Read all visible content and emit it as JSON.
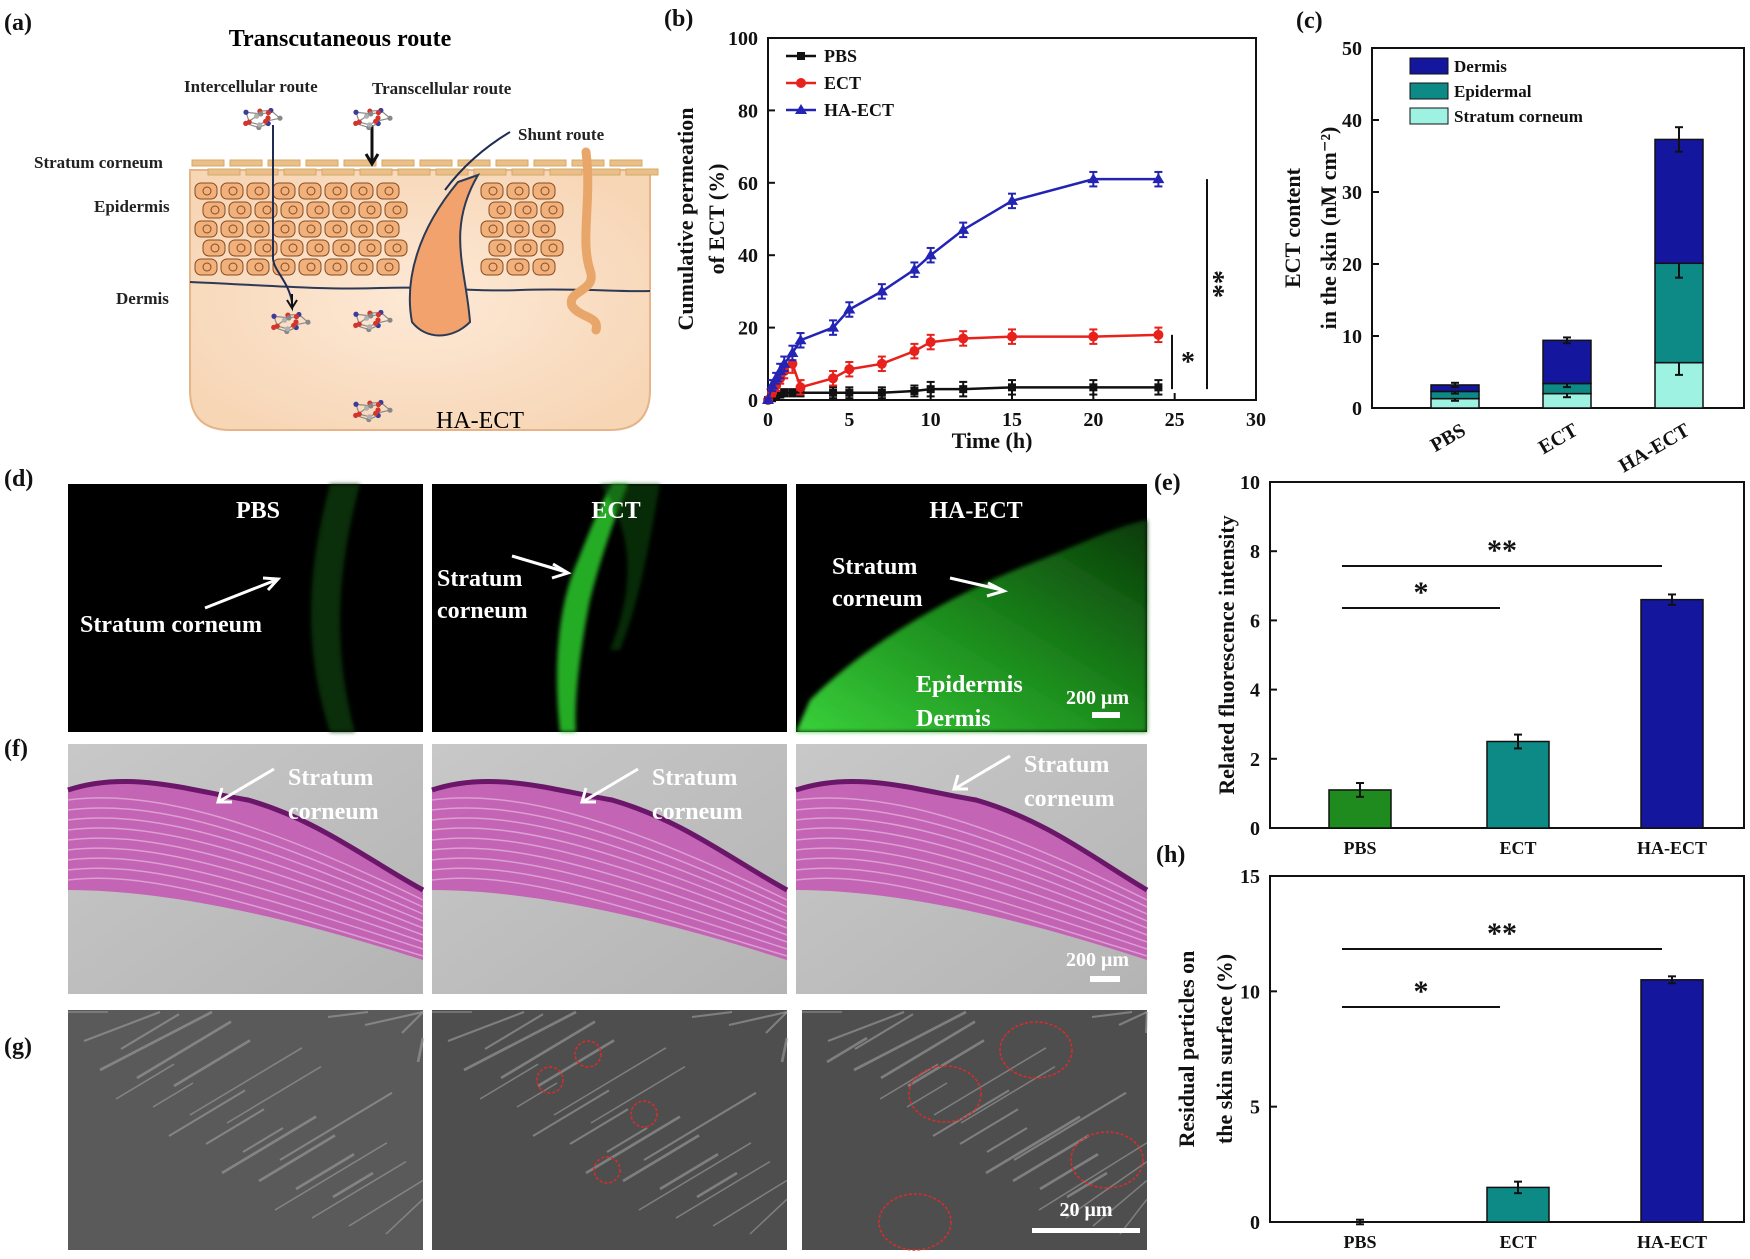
{
  "panel_labels": {
    "a": "(a)",
    "b": "(b)",
    "c": "(c)",
    "d": "(d)",
    "e": "(e)",
    "f": "(f)",
    "g": "(g)",
    "h": "(h)"
  },
  "diagram": {
    "title": "Transcutaneous route",
    "intercellular": "Intercellular route",
    "transcellular": "Transcellular route",
    "shunt": "Shunt route",
    "stratum_corneum": "Stratum  corneum",
    "epidermis": "Epidermis",
    "dermis": "Dermis",
    "ha_ect": "HA-ECT"
  },
  "fluor": {
    "titles": [
      "PBS",
      "ECT",
      "HA-ECT"
    ],
    "pbs_label": "Stratum corneum",
    "ect_label_1": "Stratum",
    "ect_label_2": "corneum",
    "ha_label_1": "Stratum",
    "ha_label_2": "corneum",
    "epidermis": "Epidermis",
    "dermis": "Dermis",
    "scale": "200 μm"
  },
  "histology": {
    "label_1": "Stratum",
    "label_2": "corneum",
    "scale": "200 μm"
  },
  "sem": {
    "scale": "20 μm"
  },
  "colors": {
    "black": "#111111",
    "red": "#e8211c",
    "blue": "#2323b4",
    "dermis": "#14179e",
    "epidermal": "#0d8a86",
    "stratum": "#9ef2e2",
    "green": "#1f8b1f",
    "teal": "#0d8a86",
    "navy": "#14179e"
  },
  "chart_data": [
    {
      "id": "b",
      "type": "line",
      "xlabel": "Time (h)",
      "ylabel": [
        "Cumulative permeation",
        "of ECT (%)"
      ],
      "xlim": [
        0,
        30
      ],
      "ylim": [
        0,
        100
      ],
      "xticks": [
        0,
        5,
        10,
        15,
        20,
        25,
        30
      ],
      "yticks": [
        0,
        20,
        40,
        60,
        80,
        100
      ],
      "series": [
        {
          "name": "PBS",
          "marker": "square",
          "color": "#111111",
          "x": [
            0,
            0.25,
            0.5,
            0.75,
            1,
            1.5,
            2,
            4,
            5,
            7,
            9,
            10,
            12,
            15,
            20,
            24
          ],
          "y": [
            0,
            0.5,
            1,
            1.5,
            2,
            2,
            2,
            2,
            2,
            2,
            2.5,
            3,
            3,
            3.5,
            3.5,
            3.5
          ],
          "err": [
            0.4,
            0.6,
            0.8,
            0.8,
            1,
            1,
            1,
            1.5,
            1.5,
            1.5,
            1.5,
            2,
            2,
            2,
            2,
            2
          ]
        },
        {
          "name": "ECT",
          "marker": "circle",
          "color": "#e8211c",
          "x": [
            0,
            0.25,
            0.5,
            0.75,
            1,
            1.5,
            2,
            4,
            5,
            7,
            9,
            10,
            12,
            15,
            20,
            24
          ],
          "y": [
            0,
            2,
            4,
            6,
            8,
            10,
            3.5,
            6,
            8.5,
            10,
            13.5,
            16,
            17,
            17.5,
            17.5,
            18
          ],
          "err": [
            0.5,
            1,
            1.5,
            1.5,
            2,
            2.5,
            2,
            2,
            2,
            2,
            2,
            2,
            2,
            2,
            2,
            2
          ]
        },
        {
          "name": "HA-ECT",
          "marker": "triangle",
          "color": "#2323b4",
          "x": [
            0,
            0.25,
            0.5,
            0.75,
            1,
            1.5,
            2,
            4,
            5,
            7,
            9,
            10,
            12,
            15,
            20,
            24
          ],
          "y": [
            0,
            4,
            6,
            8,
            10,
            13,
            16.5,
            20,
            25,
            30,
            36,
            40,
            47,
            55,
            61,
            61
          ],
          "err": [
            0.5,
            1.5,
            1.5,
            2,
            2,
            2,
            2,
            2,
            2,
            2,
            2,
            2,
            2,
            2,
            2,
            2
          ]
        }
      ],
      "annotations": [
        "*",
        "**"
      ]
    },
    {
      "id": "c",
      "type": "bar",
      "stacked": true,
      "ylabel": [
        "ECT content",
        "in the skin (nM cm⁻²)"
      ],
      "ylim": [
        0,
        50
      ],
      "yticks": [
        0,
        10,
        20,
        30,
        40,
        50
      ],
      "categories": [
        "PBS",
        "ECT",
        "HA-ECT"
      ],
      "series": [
        {
          "name": "Stratum corneum",
          "color": "#9ef2e2",
          "values": [
            1.3,
            2.0,
            6.3
          ],
          "err": [
            0.3,
            0.5,
            1.7
          ]
        },
        {
          "name": "Epidermal",
          "color": "#0d8a86",
          "values": [
            1.0,
            1.4,
            13.8
          ],
          "err": [
            0.3,
            0.5,
            2.0
          ]
        },
        {
          "name": "Dermis",
          "color": "#14179e",
          "values": [
            0.9,
            6.0,
            17.2
          ],
          "err": [
            0.3,
            0.4,
            1.7
          ]
        }
      ],
      "legend_order": [
        "Dermis",
        "Epidermal",
        "Stratum corneum"
      ]
    },
    {
      "id": "e",
      "type": "bar",
      "ylabel": [
        "Related fluorescence intensity"
      ],
      "ylim": [
        0,
        10
      ],
      "yticks": [
        0,
        2,
        4,
        6,
        8,
        10
      ],
      "categories": [
        "PBS",
        "ECT",
        "HA-ECT"
      ],
      "values": [
        1.1,
        2.5,
        6.6
      ],
      "err": [
        0.2,
        0.2,
        0.15
      ],
      "colors": [
        "#1f8b1f",
        "#0d8a86",
        "#14179e"
      ],
      "annotations": [
        "*",
        "**"
      ]
    },
    {
      "id": "h",
      "type": "bar",
      "ylabel": [
        "Residual particles on",
        "the skin surface (%)"
      ],
      "ylim": [
        0,
        15
      ],
      "yticks": [
        0,
        5,
        10,
        15
      ],
      "categories": [
        "PBS",
        "ECT",
        "HA-ECT"
      ],
      "values": [
        0.0,
        1.5,
        10.5
      ],
      "err": [
        0.1,
        0.25,
        0.15
      ],
      "colors": [
        "#1f8b1f",
        "#0d8a86",
        "#14179e"
      ],
      "annotations": [
        "*",
        "**"
      ]
    }
  ]
}
